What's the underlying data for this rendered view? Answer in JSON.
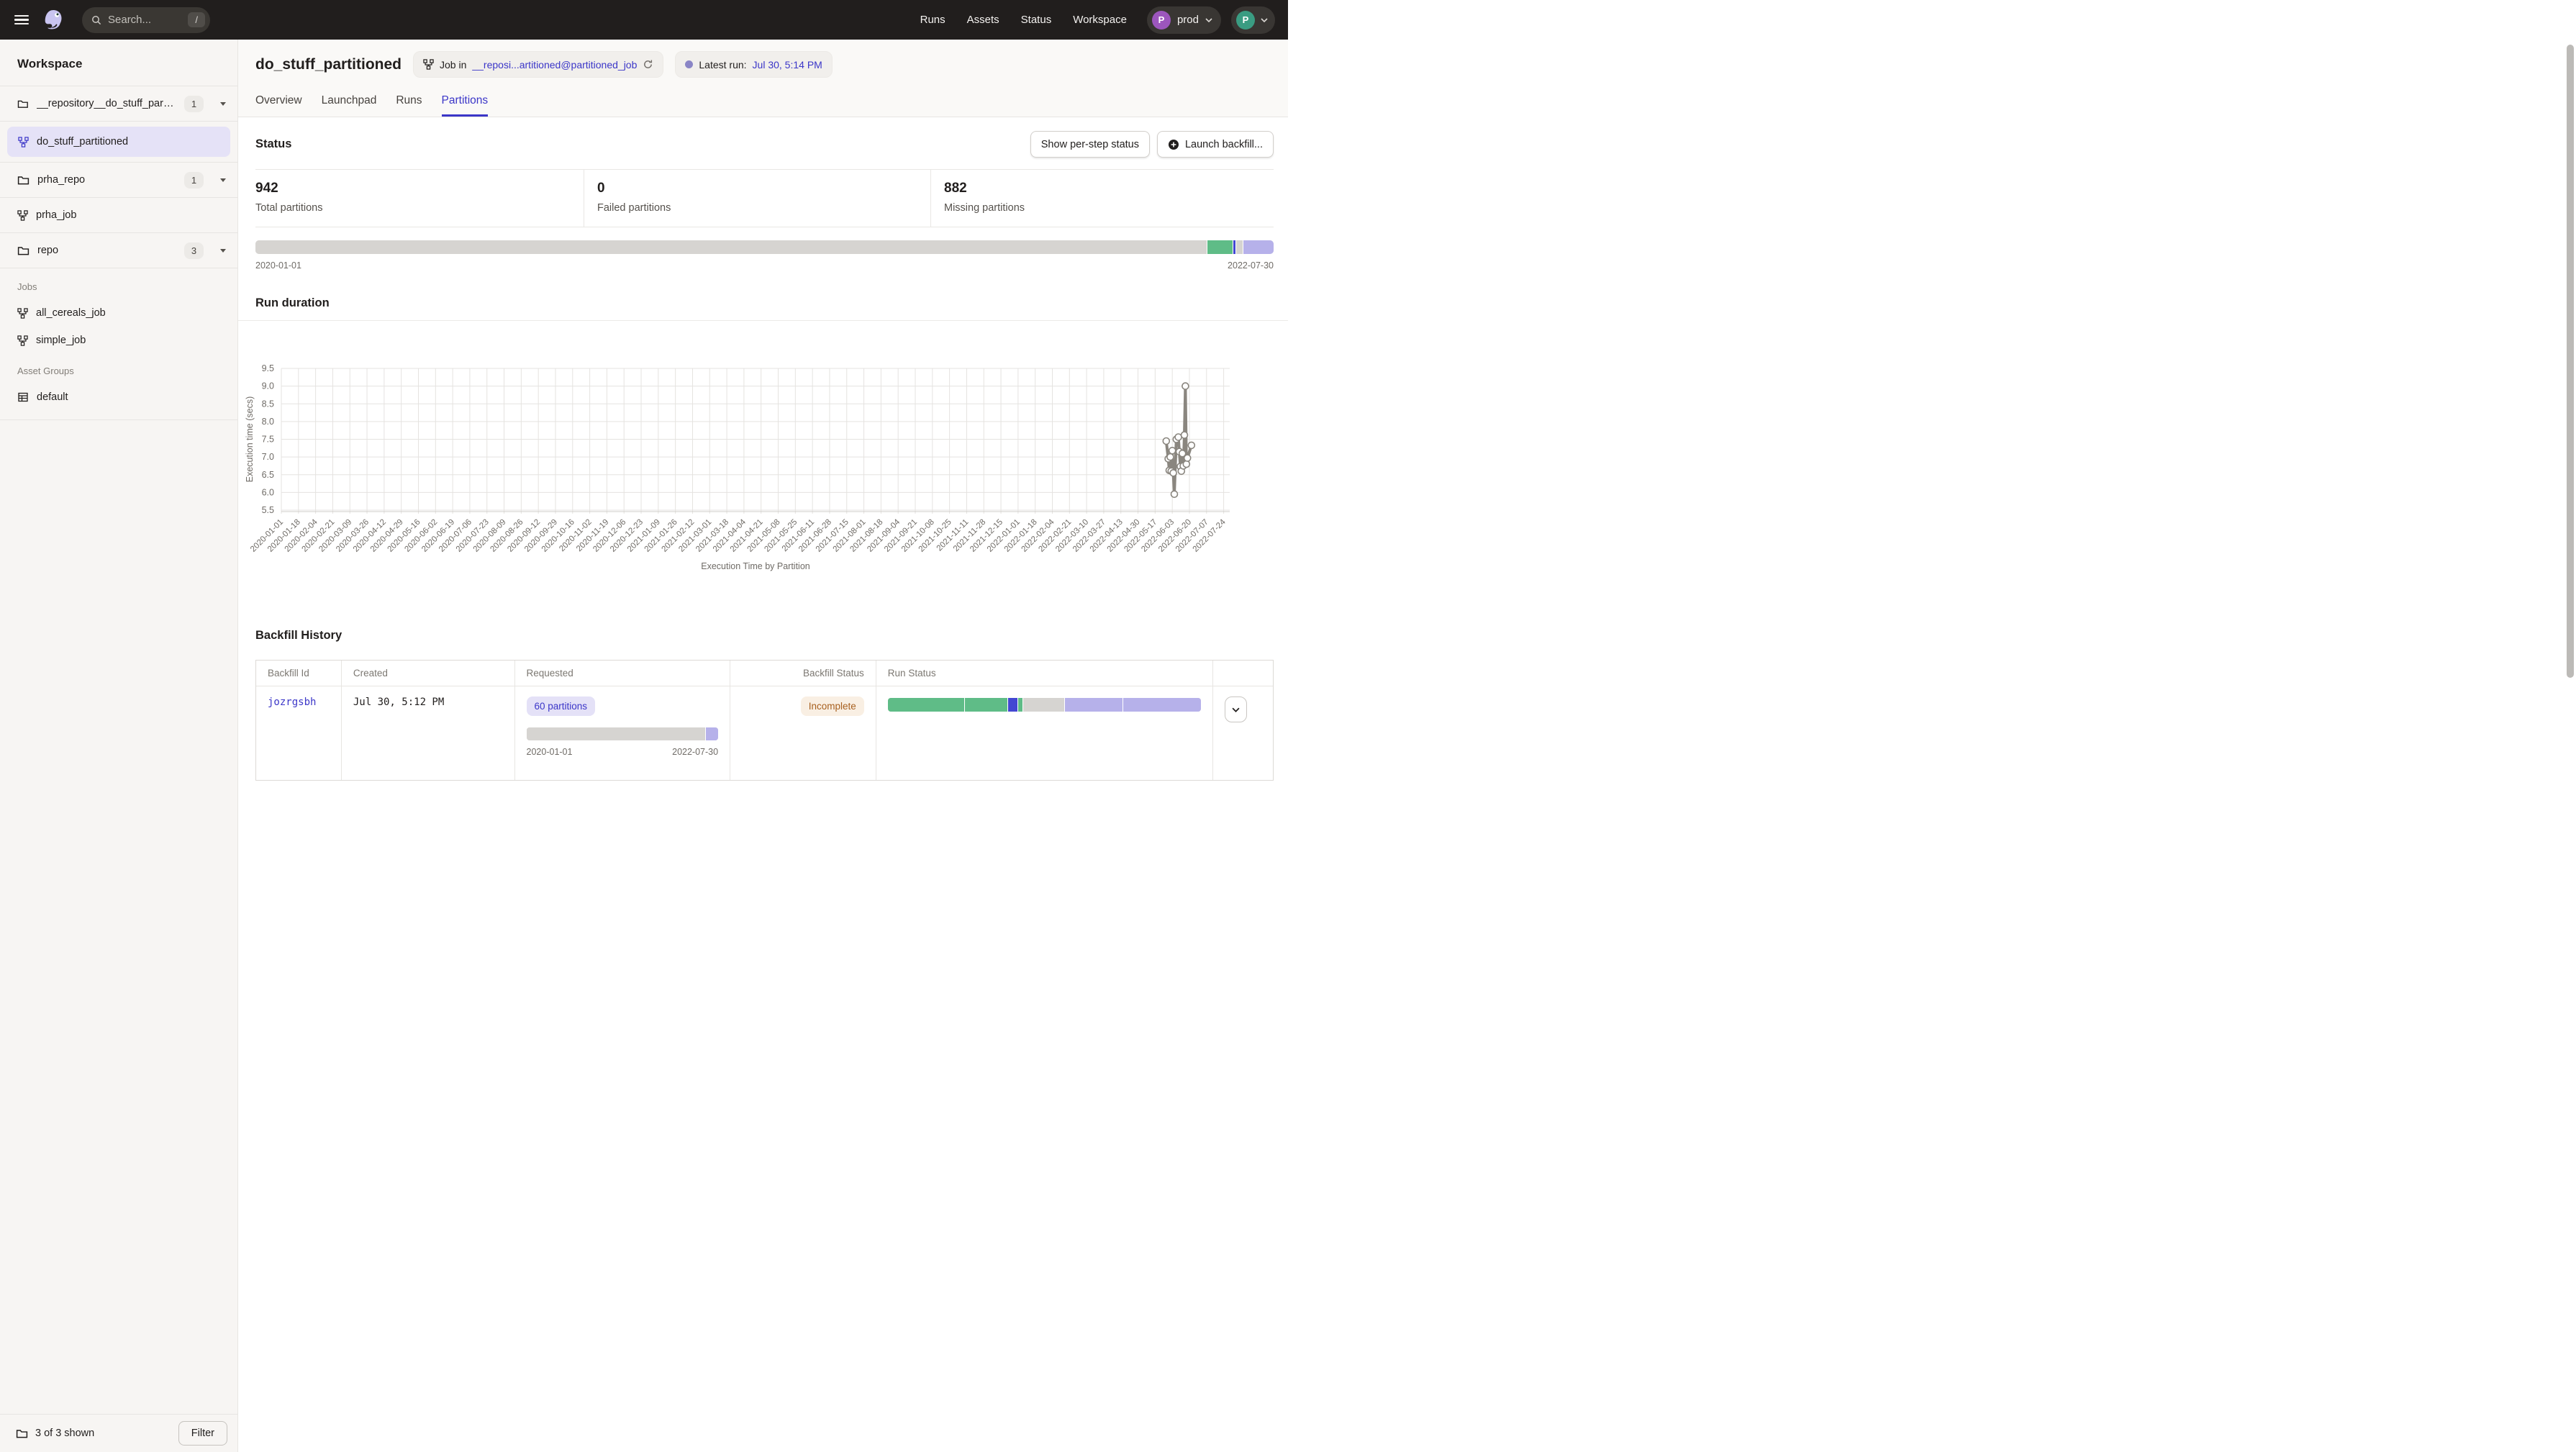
{
  "colors": {
    "indigo": "#3b36c8",
    "green": "#5fbc87",
    "blue": "#4347d2",
    "lavender": "#b6b1ea",
    "gray": "#d6d4d1",
    "orange": "#a8601f",
    "dot_purple": "#8a85c6"
  },
  "topbar": {
    "search_placeholder": "Search...",
    "shortcut": "/",
    "nav": [
      "Runs",
      "Assets",
      "Status",
      "Workspace"
    ],
    "deployment": {
      "initial": "P",
      "label": "prod"
    },
    "user": {
      "initial": "P"
    }
  },
  "sidebar": {
    "title": "Workspace",
    "repos": [
      {
        "kind": "folder",
        "name": "__repository__do_stuff_partitio...",
        "badge": "1"
      },
      {
        "kind": "job",
        "name": "do_stuff_partitioned",
        "active": true
      },
      {
        "kind": "folder",
        "name": "prha_repo",
        "badge": "1"
      },
      {
        "kind": "job",
        "name": "prha_job"
      },
      {
        "kind": "folder",
        "name": "repo",
        "badge": "3"
      }
    ],
    "jobs_label": "Jobs",
    "jobs": [
      "all_cereals_job",
      "simple_job"
    ],
    "asset_groups_label": "Asset Groups",
    "asset_groups": [
      "default"
    ],
    "footer": {
      "shown": "3 of 3 shown",
      "filter_label": "Filter"
    }
  },
  "header": {
    "title": "do_stuff_partitioned",
    "job_tag_prefix": "Job in",
    "job_tag_link": "__reposi...artitioned@partitioned_job",
    "latest_run_label": "Latest run:",
    "latest_run_value": "Jul 30, 5:14 PM"
  },
  "tabs": [
    {
      "label": "Overview",
      "active": false
    },
    {
      "label": "Launchpad",
      "active": false
    },
    {
      "label": "Runs",
      "active": false
    },
    {
      "label": "Partitions",
      "active": true
    }
  ],
  "status_section": {
    "title": "Status",
    "show_per_step": "Show per-step status",
    "launch_backfill": "Launch backfill...",
    "stats": [
      {
        "value": "942",
        "label": "Total partitions"
      },
      {
        "value": "0",
        "label": "Failed partitions"
      },
      {
        "value": "882",
        "label": "Missing partitions"
      }
    ],
    "range_start": "2020-01-01",
    "range_end": "2022-07-30",
    "partition_bar": [
      {
        "c": "gray",
        "w": 93.5
      },
      {
        "c": "green",
        "w": 2.55
      },
      {
        "c": "blue",
        "w": 0.3
      },
      {
        "c": "gray",
        "w": 0.65
      },
      {
        "c": "lavender",
        "w": 3.0
      }
    ]
  },
  "run_duration": {
    "title": "Run duration",
    "chart_data": {
      "type": "line",
      "title": "Execution Time by Partition",
      "ylabel": "Execution time (secs)",
      "ylim": [
        5.5,
        9.5
      ],
      "y_tick_step": 0.5,
      "x_domain": [
        "2020-01-01",
        "2022-07-30"
      ],
      "x_ticks": [
        "2020-01-01",
        "2020-01-18",
        "2020-02-04",
        "2020-02-21",
        "2020-03-09",
        "2020-03-26",
        "2020-04-12",
        "2020-04-29",
        "2020-05-16",
        "2020-06-02",
        "2020-06-19",
        "2020-07-06",
        "2020-07-23",
        "2020-08-09",
        "2020-08-26",
        "2020-09-12",
        "2020-09-29",
        "2020-10-16",
        "2020-11-02",
        "2020-11-19",
        "2020-12-06",
        "2020-12-23",
        "2021-01-09",
        "2021-01-26",
        "2021-02-12",
        "2021-03-01",
        "2021-03-18",
        "2021-04-04",
        "2021-04-21",
        "2021-05-08",
        "2021-05-25",
        "2021-06-11",
        "2021-06-28",
        "2021-07-15",
        "2021-08-01",
        "2021-08-18",
        "2021-09-04",
        "2021-09-21",
        "2021-10-08",
        "2021-10-25",
        "2021-11-11",
        "2021-11-28",
        "2021-12-15",
        "2022-01-01",
        "2022-01-18",
        "2022-02-04",
        "2022-02-21",
        "2022-03-10",
        "2022-03-27",
        "2022-04-13",
        "2022-04-30",
        "2022-05-17",
        "2022-06-03",
        "2022-06-20",
        "2022-07-07",
        "2022-07-24"
      ],
      "series": [
        {
          "name": "execution-time-secs",
          "points": [
            [
              "2022-05-28",
              7.45
            ],
            [
              "2022-05-30",
              6.95
            ],
            [
              "2022-05-31",
              6.62
            ],
            [
              "2022-06-01",
              7.0
            ],
            [
              "2022-06-02",
              6.6
            ],
            [
              "2022-06-03",
              7.18
            ],
            [
              "2022-06-04",
              6.55
            ],
            [
              "2022-06-05",
              5.95
            ],
            [
              "2022-06-07",
              7.5
            ],
            [
              "2022-06-09",
              7.56
            ],
            [
              "2022-06-10",
              7.15
            ],
            [
              "2022-06-11",
              6.73
            ],
            [
              "2022-06-12",
              6.6
            ],
            [
              "2022-06-13",
              7.1
            ],
            [
              "2022-06-14",
              6.75
            ],
            [
              "2022-06-15",
              7.62
            ],
            [
              "2022-06-16",
              9.0
            ],
            [
              "2022-06-17",
              6.8
            ],
            [
              "2022-06-18",
              6.97
            ],
            [
              "2022-06-22",
              7.33
            ]
          ]
        }
      ]
    }
  },
  "backfill": {
    "title": "Backfill History",
    "columns": [
      "Backfill Id",
      "Created",
      "Requested",
      "Backfill Status",
      "Run Status"
    ],
    "rows": [
      {
        "id": "jozrgsbh",
        "created": "Jul 30, 5:12 PM",
        "requested": "60 partitions",
        "range_start": "2020-01-01",
        "range_end": "2022-07-30",
        "status": "Incomplete",
        "requested_bar": [
          {
            "c": "gray",
            "w": 93.5
          },
          {
            "c": "lavender",
            "w": 6.5
          }
        ],
        "run_status_bar": [
          {
            "c": "green",
            "w": 24.7
          },
          {
            "c": "green",
            "w": 13.8
          },
          {
            "c": "blue",
            "w": 3.2
          },
          {
            "c": "green",
            "w": 1.5
          },
          {
            "c": "gray",
            "w": 13.3
          },
          {
            "c": "lavender",
            "w": 18.6
          },
          {
            "c": "lavender",
            "w": 24.9
          }
        ]
      }
    ]
  }
}
